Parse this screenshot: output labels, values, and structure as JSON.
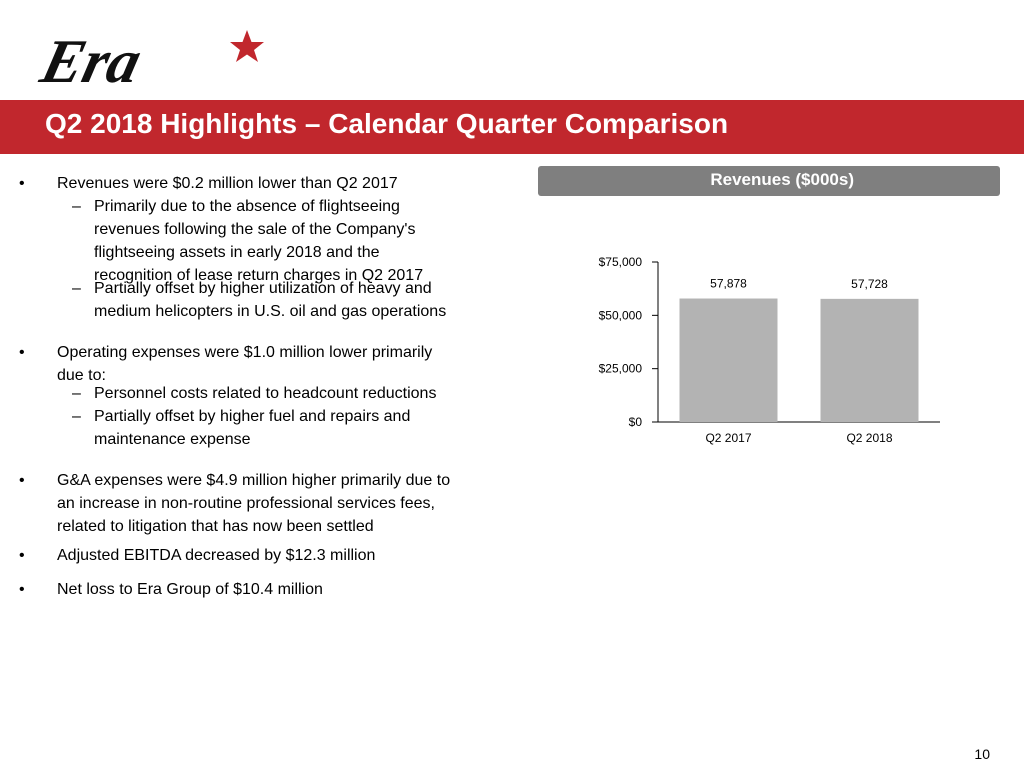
{
  "logo": {
    "text": "Era"
  },
  "title": "Q2 2018 Highlights – Calendar Quarter Comparison",
  "bullet_marker": "•",
  "dash_marker": "–",
  "bullets": {
    "b1": "Revenues were $0.2 million lower than Q2 2017",
    "b1_s1_lines": [
      "Primarily due to the absence of flightseeing",
      "revenues following the sale of the Company's",
      "flightseeing assets in early 2018 and the",
      "recognition of lease return charges in Q2 2017"
    ],
    "b1_s2_lines": [
      "Partially offset by higher utilization of heavy and",
      "medium helicopters in U.S. oil and gas operations"
    ],
    "b2_lines": [
      "Operating expenses were $1.0 million lower primarily",
      "due to:"
    ],
    "b2_s1": "Personnel costs related to headcount reductions",
    "b2_s2_lines": [
      "Partially offset by higher fuel and repairs and",
      "maintenance expense"
    ],
    "b3_lines": [
      "G&A expenses were $4.9 million higher primarily due to",
      "an increase in non-routine professional services fees,",
      "related to litigation that has now been settled"
    ],
    "b4": "Adjusted EBITDA decreased by $12.3 million",
    "b5": "Net loss to Era Group of $10.4 million"
  },
  "chart_header": "Revenues ($000s)",
  "chart_data": {
    "type": "bar",
    "title": "Revenues ($000s)",
    "categories": [
      "Q2 2017",
      "Q2 2018"
    ],
    "values": [
      57878,
      57728
    ],
    "data_labels": [
      "57,878",
      "57,728"
    ],
    "ylim": [
      0,
      75000
    ],
    "yticks": [
      0,
      25000,
      50000,
      75000
    ],
    "ytick_labels": [
      "$0",
      "$25,000",
      "$50,000",
      "$75,000"
    ],
    "bar_color": "#b3b3b3",
    "xlabel": "",
    "ylabel": ""
  },
  "page_number": "10",
  "colors": {
    "brand_red": "#c1272d",
    "header_gray": "#7f7f7f"
  }
}
